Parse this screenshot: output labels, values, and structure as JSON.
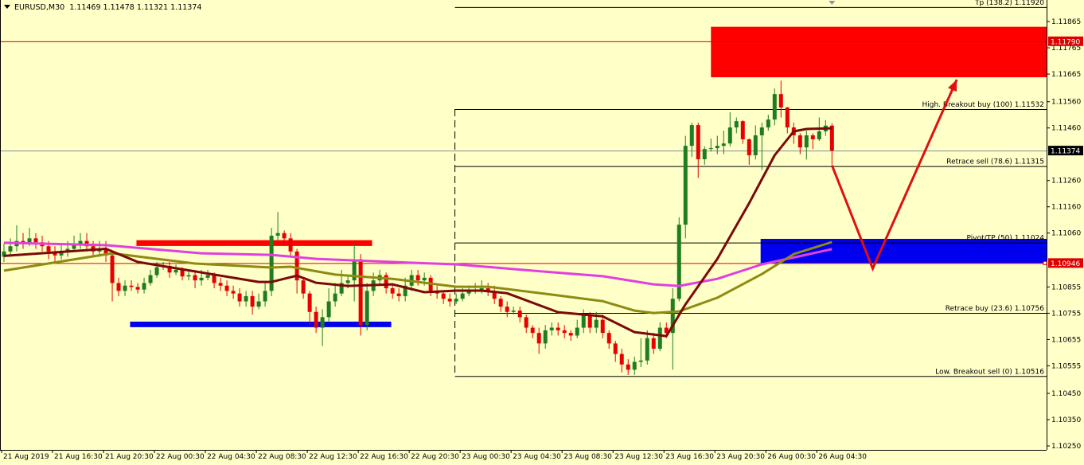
{
  "header": {
    "symbol": "EURUSD,M30",
    "ohlc_text": "1.11469 1.11478 1.11321 1.11374"
  },
  "colors": {
    "background": "#ffffc8",
    "bull": "#1e7d1e",
    "bear": "#e60000",
    "ma_fast": "#7a0a0a",
    "ma_mid": "#8c8c14",
    "ma_slow": "#e040e0",
    "zone_red": "#ff0000",
    "zone_blue": "#0000ee",
    "arrow": "#e01010"
  },
  "chart_data": {
    "type": "candlestick",
    "title": "",
    "xlim": [
      -0.6,
      163.7
    ],
    "ylim": [
      1.10235,
      1.11947
    ],
    "x_ticks": [
      {
        "i": 0,
        "label": "21 Aug 2019"
      },
      {
        "i": 8,
        "label": "21 Aug 16:30"
      },
      {
        "i": 16,
        "label": "21 Aug 20:30"
      },
      {
        "i": 24,
        "label": "22 Aug 00:30"
      },
      {
        "i": 32,
        "label": "22 Aug 04:30"
      },
      {
        "i": 40,
        "label": "22 Aug 08:30"
      },
      {
        "i": 48,
        "label": "22 Aug 12:30"
      },
      {
        "i": 56,
        "label": "22 Aug 16:30"
      },
      {
        "i": 64,
        "label": "22 Aug 20:30"
      },
      {
        "i": 72,
        "label": "23 Aug 00:30"
      },
      {
        "i": 80,
        "label": "23 Aug 04:30"
      },
      {
        "i": 88,
        "label": "23 Aug 08:30"
      },
      {
        "i": 96,
        "label": "23 Aug 12:30"
      },
      {
        "i": 104,
        "label": "23 Aug 16:30"
      },
      {
        "i": 112,
        "label": "23 Aug 20:30"
      },
      {
        "i": 120,
        "label": "26 Aug 00:30"
      },
      {
        "i": 128,
        "label": "26 Aug 04:30"
      }
    ],
    "y_ticks": [
      "1.11865",
      "1.11765",
      "1.11665",
      "1.11560",
      "1.11460",
      "1.11260",
      "1.11160",
      "1.11060",
      "1.10855",
      "1.10755",
      "1.10655",
      "1.10555",
      "1.10450",
      "1.10350",
      "1.10250"
    ],
    "first_open": 1.1097,
    "close": [
      1.1099,
      1.1101,
      1.1103,
      1.1102,
      1.1104,
      1.11025,
      1.1101,
      1.1099,
      1.10975,
      1.1099,
      1.11,
      1.11015,
      1.1103,
      1.1101,
      1.1099,
      1.11,
      1.10975,
      1.1087,
      1.1084,
      1.1086,
      1.10855,
      1.10845,
      1.1087,
      1.109,
      1.1093,
      1.10935,
      1.1091,
      1.1092,
      1.10895,
      1.109,
      1.1088,
      1.1089,
      1.109,
      1.1087,
      1.1086,
      1.1084,
      1.1083,
      1.108,
      1.1082,
      1.1078,
      1.108,
      1.1084,
      1.1105,
      1.1106,
      1.1104,
      1.1099,
      1.1088,
      1.1083,
      1.1076,
      1.107,
      1.1074,
      1.108,
      1.1083,
      1.1087,
      1.1088,
      1.1096,
      1.1071,
      1.1084,
      1.1088,
      1.109,
      1.1085,
      1.1083,
      1.1082,
      1.1086,
      1.109,
      1.1088,
      1.1089,
      1.1084,
      1.1083,
      1.1081,
      1.108,
      1.1081,
      1.1083,
      1.1084,
      1.10845,
      1.1085,
      1.1084,
      1.1081,
      1.1078,
      1.1076,
      1.10765,
      1.1074,
      1.107,
      1.1068,
      1.1064,
      1.1069,
      1.107,
      1.1069,
      1.1068,
      1.1067,
      1.107,
      1.1075,
      1.107,
      1.1073,
      1.1068,
      1.1064,
      1.106,
      1.1056,
      1.1054,
      1.1057,
      1.10575,
      1.1066,
      1.1062,
      1.107,
      1.1068,
      1.1081,
      1.11092,
      1.11392,
      1.11471,
      1.11341,
      1.1138,
      1.11383,
      1.11392,
      1.11401,
      1.11462,
      1.11486,
      1.11417,
      1.11356,
      1.11432,
      1.11462,
      1.11492,
      1.11589,
      1.11538,
      1.11462,
      1.11432,
      1.11386,
      1.11432,
      1.11417,
      1.11447,
      1.11469,
      1.11374
    ],
    "high": [
      1.1102,
      1.1104,
      1.1109,
      1.1106,
      1.1108,
      1.1106,
      1.1105,
      1.1103,
      1.1101,
      1.1102,
      1.1103,
      1.1105,
      1.1106,
      1.1106,
      1.1103,
      1.1103,
      1.1103,
      1.1099,
      1.1089,
      1.1088,
      1.1088,
      1.1087,
      1.1089,
      1.1092,
      1.1095,
      1.1095,
      1.1095,
      1.1094,
      1.1093,
      1.1092,
      1.1092,
      1.1092,
      1.1092,
      1.1091,
      1.1089,
      1.1088,
      1.1086,
      1.1085,
      1.1084,
      1.1084,
      1.1083,
      1.1087,
      1.1108,
      1.1114,
      1.1107,
      1.1106,
      1.11,
      1.1089,
      1.1084,
      1.1078,
      1.1077,
      1.1085,
      1.1087,
      1.1092,
      1.109,
      1.1102,
      1.1098,
      1.1087,
      1.1091,
      1.1092,
      1.1091,
      1.1087,
      1.1085,
      1.1089,
      1.1092,
      1.1092,
      1.1091,
      1.109,
      1.1086,
      1.1084,
      1.1083,
      1.1083,
      1.1085,
      1.1086,
      1.1087,
      1.1088,
      1.1087,
      1.1086,
      1.1082,
      1.108,
      1.1078,
      1.1078,
      1.1075,
      1.1071,
      1.107,
      1.1071,
      1.1072,
      1.1072,
      1.1071,
      1.1069,
      1.1073,
      1.1077,
      1.1076,
      1.1076,
      1.1075,
      1.1069,
      1.1065,
      1.1062,
      1.1058,
      1.1059,
      1.1066,
      1.1069,
      1.1068,
      1.1072,
      1.1072,
      1.1085,
      1.1112,
      1.1143,
      1.1148,
      1.1148,
      1.1139,
      1.1142,
      1.1143,
      1.1145,
      1.1152,
      1.115,
      1.1149,
      1.1142,
      1.1147,
      1.1148,
      1.1151,
      1.1161,
      1.1164,
      1.1154,
      1.1148,
      1.1144,
      1.1145,
      1.1144,
      1.115,
      1.1149,
      1.11478
    ],
    "low": [
      1.1095,
      1.1097,
      1.1099,
      1.11,
      1.1101,
      1.11,
      1.1099,
      1.1096,
      1.1095,
      1.1096,
      1.1097,
      1.1099,
      1.11,
      1.1099,
      1.1097,
      1.1097,
      1.1095,
      1.108,
      1.1082,
      1.1082,
      1.1084,
      1.1083,
      1.1083,
      1.1086,
      1.1089,
      1.1092,
      1.1089,
      1.109,
      1.1088,
      1.1088,
      1.1085,
      1.1086,
      1.1088,
      1.1085,
      1.1084,
      1.1082,
      1.1081,
      1.1078,
      1.1078,
      1.1075,
      1.1077,
      1.1078,
      1.1082,
      1.1103,
      1.1102,
      1.1097,
      1.1083,
      1.1081,
      1.1071,
      1.1068,
      1.1063,
      1.1072,
      1.1078,
      1.1082,
      1.1085,
      1.108,
      1.1067,
      1.1069,
      1.1082,
      1.1086,
      1.1083,
      1.1081,
      1.108,
      1.108,
      1.1084,
      1.1086,
      1.1086,
      1.1082,
      1.1081,
      1.1079,
      1.1078,
      1.1079,
      1.108,
      1.1082,
      1.1083,
      1.1083,
      1.1082,
      1.1079,
      1.1076,
      1.1074,
      1.1075,
      1.1072,
      1.1068,
      1.1066,
      1.106,
      1.1062,
      1.1067,
      1.1067,
      1.1066,
      1.1065,
      1.1066,
      1.1068,
      1.1068,
      1.1068,
      1.1066,
      1.1062,
      1.1057,
      1.1053,
      1.1052,
      1.1052,
      1.1055,
      1.1056,
      1.106,
      1.1061,
      1.1066,
      1.1054,
      1.108,
      1.1104,
      1.1135,
      1.1127,
      1.1132,
      1.1137,
      1.1136,
      1.1136,
      1.1139,
      1.1144,
      1.114,
      1.1132,
      1.1134,
      1.113,
      1.1145,
      1.1147,
      1.115,
      1.1144,
      1.114,
      1.1136,
      1.1134,
      1.1138,
      1.1141,
      1.1143,
      1.11321
    ],
    "moving_averages": [
      {
        "color_key": "ma_slow",
        "points": [
          [
            0,
            1.11023
          ],
          [
            16,
            1.11014
          ],
          [
            31,
            1.10983
          ],
          [
            42,
            1.10977
          ],
          [
            49,
            1.10962
          ],
          [
            64,
            1.10947
          ],
          [
            71,
            1.10941
          ],
          [
            86,
            1.10911
          ],
          [
            94,
            1.10896
          ],
          [
            102,
            1.10865
          ],
          [
            106,
            1.10859
          ],
          [
            112,
            1.10886
          ],
          [
            119,
            1.10941
          ],
          [
            130,
            1.10999
          ]
        ]
      },
      {
        "color_key": "ma_mid",
        "points": [
          [
            0,
            1.10917
          ],
          [
            17,
            1.10983
          ],
          [
            30,
            1.10944
          ],
          [
            42,
            1.10929
          ],
          [
            45,
            1.10932
          ],
          [
            52,
            1.10902
          ],
          [
            61,
            1.10886
          ],
          [
            71,
            1.10856
          ],
          [
            76,
            1.10856
          ],
          [
            86,
            1.10826
          ],
          [
            94,
            1.10801
          ],
          [
            99,
            1.10765
          ],
          [
            102,
            1.10756
          ],
          [
            106,
            1.10762
          ],
          [
            112,
            1.10814
          ],
          [
            119,
            1.10904
          ],
          [
            124,
            1.1098
          ],
          [
            130,
            1.11026
          ]
        ]
      },
      {
        "color_key": "ma_fast",
        "points": [
          [
            0,
            1.10973
          ],
          [
            16,
            1.11
          ],
          [
            21,
            1.1095
          ],
          [
            30,
            1.10914
          ],
          [
            40,
            1.10874
          ],
          [
            42,
            1.10874
          ],
          [
            46,
            1.10898
          ],
          [
            49,
            1.10871
          ],
          [
            54,
            1.10859
          ],
          [
            61,
            1.10865
          ],
          [
            66,
            1.10835
          ],
          [
            71,
            1.10841
          ],
          [
            75,
            1.10841
          ],
          [
            79,
            1.10831
          ],
          [
            87,
            1.10759
          ],
          [
            94,
            1.10743
          ],
          [
            99,
            1.10683
          ],
          [
            104,
            1.10668
          ],
          [
            107,
            1.10789
          ],
          [
            112,
            1.10962
          ],
          [
            117,
            1.11174
          ],
          [
            121,
            1.11356
          ],
          [
            124,
            1.11447
          ],
          [
            126,
            1.11456
          ],
          [
            130,
            1.11459
          ]
        ]
      }
    ],
    "horizontal_lines": [
      {
        "price": 1.1179,
        "label": "1.11790",
        "color": "#e00000",
        "label_bg": "#e00000",
        "label_fg": "#ffffff"
      },
      {
        "price": 1.11374,
        "label": "1.11374",
        "color": "#8c8c9c",
        "label_bg": "#000000",
        "label_fg": "#ffffff"
      },
      {
        "price": 1.10946,
        "label": "1.10946",
        "color": "#e00000",
        "label_bg": "#e00000",
        "label_fg": "#ffffff"
      }
    ],
    "zones": [
      {
        "color_key": "zone_red",
        "from_i": 111,
        "price_top": 1.11845,
        "price_bottom": 1.11653
      },
      {
        "color_key": "zone_blue",
        "from_i": 118.8,
        "price_top": 1.11038,
        "price_bottom": 1.10946
      }
    ],
    "bars": [
      {
        "color_key": "zone_red",
        "from_i": 20.8,
        "to_i": 57.8,
        "price_top": 1.11033,
        "price_bottom": 1.11011
      },
      {
        "color_key": "zone_blue",
        "from_i": 19.8,
        "to_i": 60.8,
        "price_top": 1.10723,
        "price_bottom": 1.10702
      }
    ],
    "fibonacci": {
      "anchor_i": 70.8,
      "levels": [
        {
          "label": "Tp (138.2)  1.11920",
          "price": 1.1192
        },
        {
          "label": "High. Breakout buy (100)  1.11532",
          "price": 1.11532
        },
        {
          "label": "Retrace sell (78.6)  1.11315",
          "price": 1.11315
        },
        {
          "label": "Pivot/TP (50)  1.11024",
          "price": 1.11024
        },
        {
          "label": "Retrace buy (23.6)  1.10756",
          "price": 1.10756
        },
        {
          "label": "Low. Breakout sell (0)  1.10516",
          "price": 1.10516
        }
      ]
    },
    "arrow_path": [
      [
        130,
        1.11318
      ],
      [
        136.4,
        1.10925
      ],
      [
        149.6,
        1.11644
      ]
    ]
  }
}
